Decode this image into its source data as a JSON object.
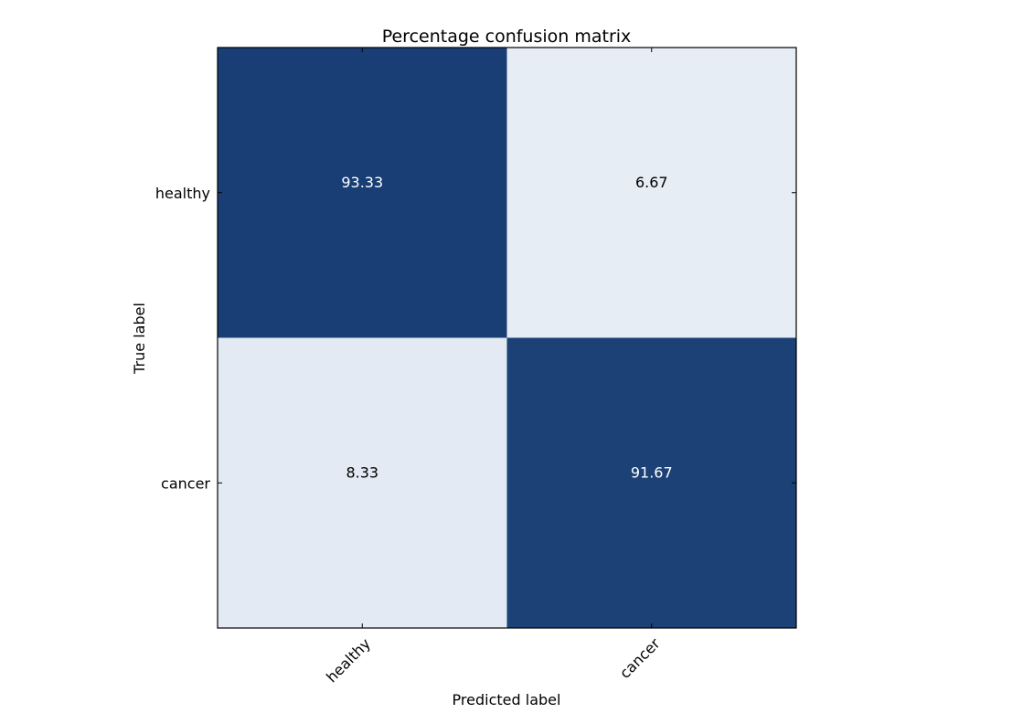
{
  "chart_data": {
    "type": "heatmap",
    "title": "Percentage confusion matrix",
    "xlabel": "Predicted label",
    "ylabel": "True label",
    "x_categories": [
      "healthy",
      "cancer"
    ],
    "y_categories": [
      "healthy",
      "cancer"
    ],
    "values": [
      [
        93.33,
        6.67
      ],
      [
        8.33,
        91.67
      ]
    ],
    "value_labels": [
      [
        "93.33",
        "6.67"
      ],
      [
        "8.33",
        "91.67"
      ]
    ],
    "colormap": "Blues",
    "value_range": [
      0,
      100
    ],
    "colors": {
      "high": "#08306b",
      "low": "#f7fbff",
      "text_on_dark": "#ffffff",
      "text_on_light": "#000000"
    },
    "grid": false,
    "legend": "none"
  }
}
